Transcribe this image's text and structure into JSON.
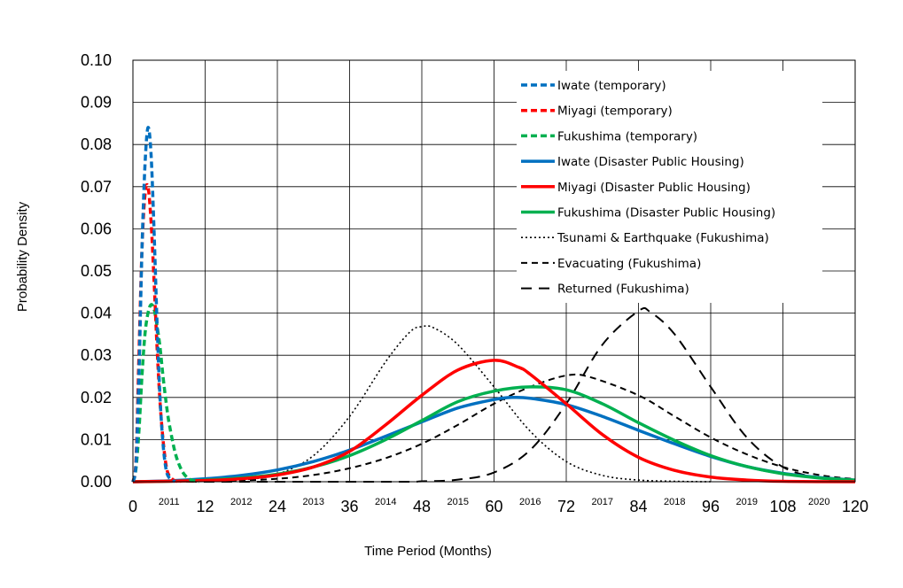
{
  "chart_data": {
    "type": "line",
    "xlabel": "Time Period (Months)",
    "ylabel": "Probability Density",
    "xlim": [
      0,
      120
    ],
    "ylim": [
      0,
      0.1
    ],
    "x_ticks": [
      0,
      12,
      24,
      36,
      48,
      60,
      72,
      84,
      96,
      108,
      120
    ],
    "y_ticks": [
      "0.00",
      "0.01",
      "0.02",
      "0.03",
      "0.04",
      "0.05",
      "0.06",
      "0.07",
      "0.08",
      "0.09",
      "0.10"
    ],
    "year_labels": [
      {
        "label": "2011",
        "x": 6
      },
      {
        "label": "2012",
        "x": 18
      },
      {
        "label": "2013",
        "x": 30
      },
      {
        "label": "2014",
        "x": 42
      },
      {
        "label": "2015",
        "x": 54
      },
      {
        "label": "2016",
        "x": 66
      },
      {
        "label": "2017",
        "x": 78
      },
      {
        "label": "2018",
        "x": 90
      },
      {
        "label": "2019",
        "x": 102
      },
      {
        "label": "2020",
        "x": 114
      }
    ],
    "grid": true,
    "legend_position": "top-right",
    "series": [
      {
        "name": "Iwate (temporary)",
        "color": "#0070c0",
        "style": "dash-thick",
        "points": [
          [
            0,
            0
          ],
          [
            0.5,
            0.004
          ],
          [
            1,
            0.025
          ],
          [
            1.5,
            0.055
          ],
          [
            2,
            0.075
          ],
          [
            2.5,
            0.084
          ],
          [
            3,
            0.078
          ],
          [
            3.5,
            0.06
          ],
          [
            4,
            0.038
          ],
          [
            4.5,
            0.02
          ],
          [
            5,
            0.009
          ],
          [
            5.5,
            0.003
          ],
          [
            6,
            0.001
          ],
          [
            7,
            0
          ]
        ]
      },
      {
        "name": "Miyagi (temporary)",
        "color": "#ff0000",
        "style": "dash-thick",
        "points": [
          [
            0,
            0
          ],
          [
            0.5,
            0.005
          ],
          [
            1,
            0.03
          ],
          [
            1.5,
            0.055
          ],
          [
            2,
            0.068
          ],
          [
            2.5,
            0.07
          ],
          [
            3,
            0.062
          ],
          [
            3.5,
            0.048
          ],
          [
            4,
            0.032
          ],
          [
            4.5,
            0.019
          ],
          [
            5,
            0.01
          ],
          [
            5.5,
            0.004
          ],
          [
            6,
            0.0015
          ],
          [
            7,
            0.0002
          ],
          [
            8,
            0
          ]
        ]
      },
      {
        "name": "Fukushima (temporary)",
        "color": "#00b050",
        "style": "dash-thick",
        "points": [
          [
            0,
            0
          ],
          [
            0.5,
            0.003
          ],
          [
            1,
            0.012
          ],
          [
            1.5,
            0.025
          ],
          [
            2,
            0.035
          ],
          [
            2.5,
            0.04
          ],
          [
            3,
            0.042
          ],
          [
            3.5,
            0.041
          ],
          [
            4,
            0.037
          ],
          [
            4.5,
            0.032
          ],
          [
            5,
            0.025
          ],
          [
            5.5,
            0.019
          ],
          [
            6,
            0.014
          ],
          [
            7,
            0.007
          ],
          [
            8,
            0.003
          ],
          [
            9,
            0.001
          ],
          [
            10,
            0.0003
          ],
          [
            11,
            0
          ]
        ]
      },
      {
        "name": "Iwate (Disaster Public Housing)",
        "color": "#0070c0",
        "style": "solid",
        "points": [
          [
            0,
            0
          ],
          [
            6,
            0.0002
          ],
          [
            12,
            0.0007
          ],
          [
            18,
            0.0015
          ],
          [
            24,
            0.0028
          ],
          [
            30,
            0.0048
          ],
          [
            36,
            0.0075
          ],
          [
            42,
            0.0108
          ],
          [
            48,
            0.0142
          ],
          [
            54,
            0.0175
          ],
          [
            60,
            0.0195
          ],
          [
            63,
            0.02
          ],
          [
            66,
            0.0198
          ],
          [
            72,
            0.0183
          ],
          [
            78,
            0.0155
          ],
          [
            84,
            0.0122
          ],
          [
            90,
            0.009
          ],
          [
            96,
            0.006
          ],
          [
            102,
            0.0036
          ],
          [
            108,
            0.002
          ],
          [
            114,
            0.001
          ],
          [
            120,
            0.0004
          ]
        ]
      },
      {
        "name": "Miyagi (Disaster Public Housing)",
        "color": "#ff0000",
        "style": "solid",
        "points": [
          [
            0,
            0
          ],
          [
            12,
            0.0003
          ],
          [
            18,
            0.0007
          ],
          [
            24,
            0.0016
          ],
          [
            30,
            0.0035
          ],
          [
            36,
            0.0072
          ],
          [
            42,
            0.0135
          ],
          [
            48,
            0.0205
          ],
          [
            54,
            0.0265
          ],
          [
            60,
            0.0288
          ],
          [
            64,
            0.0272
          ],
          [
            66,
            0.0255
          ],
          [
            72,
            0.0185
          ],
          [
            78,
            0.0112
          ],
          [
            84,
            0.0058
          ],
          [
            90,
            0.0027
          ],
          [
            96,
            0.0011
          ],
          [
            102,
            0.0004
          ],
          [
            108,
            0.0001
          ],
          [
            120,
            0
          ]
        ]
      },
      {
        "name": "Fukushima (Disaster Public Housing)",
        "color": "#00b050",
        "style": "solid",
        "points": [
          [
            0,
            0
          ],
          [
            6,
            0.0001
          ],
          [
            12,
            0.0004
          ],
          [
            18,
            0.0009
          ],
          [
            24,
            0.0018
          ],
          [
            30,
            0.0035
          ],
          [
            36,
            0.0062
          ],
          [
            42,
            0.01
          ],
          [
            48,
            0.0145
          ],
          [
            54,
            0.019
          ],
          [
            60,
            0.0215
          ],
          [
            66,
            0.0225
          ],
          [
            72,
            0.0218
          ],
          [
            78,
            0.0185
          ],
          [
            84,
            0.014
          ],
          [
            90,
            0.0098
          ],
          [
            96,
            0.0062
          ],
          [
            102,
            0.0036
          ],
          [
            108,
            0.0019
          ],
          [
            114,
            0.0009
          ],
          [
            120,
            0.0004
          ]
        ]
      },
      {
        "name": "Tsunami & Earthquake (Fukushima)",
        "color": "#000000",
        "style": "dotted",
        "points": [
          [
            0,
            0
          ],
          [
            12,
            0.0001
          ],
          [
            18,
            0.0004
          ],
          [
            24,
            0.0018
          ],
          [
            30,
            0.0062
          ],
          [
            36,
            0.0155
          ],
          [
            42,
            0.0285
          ],
          [
            46,
            0.0355
          ],
          [
            48,
            0.0368
          ],
          [
            50,
            0.0365
          ],
          [
            54,
            0.0325
          ],
          [
            60,
            0.0225
          ],
          [
            66,
            0.012
          ],
          [
            72,
            0.0048
          ],
          [
            78,
            0.0015
          ],
          [
            84,
            0.0004
          ],
          [
            90,
            0.0001
          ],
          [
            96,
            0
          ]
        ]
      },
      {
        "name": "Evacuating (Fukushima)",
        "color": "#000000",
        "style": "dash-short",
        "points": [
          [
            0,
            0
          ],
          [
            12,
            0.0001
          ],
          [
            18,
            0.0003
          ],
          [
            24,
            0.0007
          ],
          [
            30,
            0.0016
          ],
          [
            36,
            0.0032
          ],
          [
            42,
            0.0056
          ],
          [
            48,
            0.009
          ],
          [
            54,
            0.0135
          ],
          [
            60,
            0.0185
          ],
          [
            66,
            0.0225
          ],
          [
            72,
            0.0252
          ],
          [
            76,
            0.0248
          ],
          [
            84,
            0.0205
          ],
          [
            90,
            0.0155
          ],
          [
            96,
            0.0105
          ],
          [
            102,
            0.0065
          ],
          [
            108,
            0.0035
          ],
          [
            114,
            0.0016
          ],
          [
            120,
            0.0006
          ]
        ]
      },
      {
        "name": "Returned (Fukushima)",
        "color": "#000000",
        "style": "dash-long",
        "points": [
          [
            0,
            0
          ],
          [
            42,
            0
          ],
          [
            48,
            0.0001
          ],
          [
            54,
            0.0005
          ],
          [
            60,
            0.0022
          ],
          [
            66,
            0.0075
          ],
          [
            72,
            0.0185
          ],
          [
            78,
            0.0325
          ],
          [
            84,
            0.0405
          ],
          [
            86,
            0.0402
          ],
          [
            90,
            0.035
          ],
          [
            96,
            0.0225
          ],
          [
            102,
            0.0105
          ],
          [
            108,
            0.0035
          ],
          [
            114,
            0.0009
          ],
          [
            120,
            0.0002
          ]
        ]
      }
    ]
  }
}
